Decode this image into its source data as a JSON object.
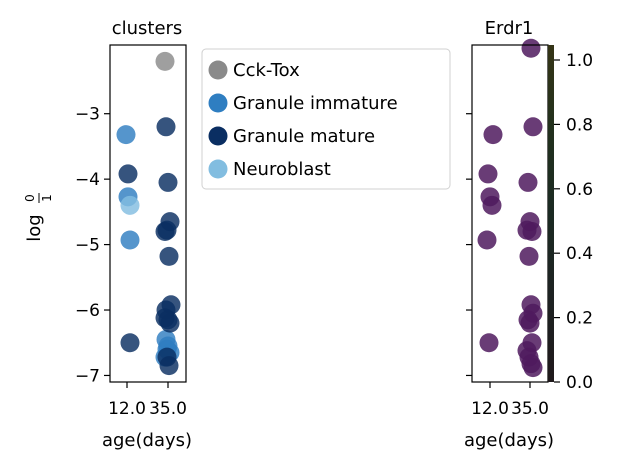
{
  "chart_data": [
    {
      "type": "scatter",
      "title": "clusters",
      "xlabel": "age(days)",
      "ylabel_base": "log",
      "ylabel_frac_num": "0",
      "ylabel_frac_den": "1",
      "x_ticks": [
        "12.0",
        "35.0"
      ],
      "y_ticks": [
        "−7",
        "−6",
        "−5",
        "−4",
        "−3"
      ],
      "y_tick_values": [
        -7,
        -6,
        -5,
        -4,
        -3
      ],
      "ylim": [
        -7.1,
        -1.95
      ],
      "legend_position": "outside-right",
      "series": [
        {
          "name": "Cck-Tox",
          "color": "#8a8a8a",
          "points": [
            [
              35.0,
              -2.2
            ]
          ]
        },
        {
          "name": "Granule immature",
          "color": "#2f7ec1",
          "points": [
            [
              12.0,
              -3.32
            ],
            [
              12.0,
              -4.27
            ],
            [
              12.0,
              -4.93
            ],
            [
              35.0,
              -6.45
            ],
            [
              35.0,
              -6.55
            ],
            [
              35.0,
              -6.65
            ],
            [
              35.0,
              -6.72
            ],
            [
              35.0,
              -6.6
            ]
          ]
        },
        {
          "name": "Granule mature",
          "color": "#0a2e62",
          "points": [
            [
              12.0,
              -3.92
            ],
            [
              12.0,
              -6.5
            ],
            [
              35.0,
              -3.2
            ],
            [
              35.0,
              -4.05
            ],
            [
              35.0,
              -4.65
            ],
            [
              35.0,
              -4.8
            ],
            [
              35.0,
              -4.78
            ],
            [
              35.0,
              -5.18
            ],
            [
              35.0,
              -5.92
            ],
            [
              35.0,
              -6.0
            ],
            [
              35.0,
              -6.15
            ],
            [
              35.0,
              -6.2
            ],
            [
              35.0,
              -6.12
            ],
            [
              35.0,
              -6.72
            ],
            [
              35.0,
              -6.85
            ]
          ]
        },
        {
          "name": "Neuroblast",
          "color": "#82bde0",
          "points": [
            [
              12.0,
              -4.4
            ]
          ]
        }
      ]
    },
    {
      "type": "scatter",
      "title": "Erdr1",
      "xlabel": "age(days)",
      "x_ticks": [
        "12.0",
        "35.0"
      ],
      "ylim": [
        -7.1,
        -1.95
      ],
      "colormap": "viridis",
      "colorbar_ticks": [
        "0.0",
        "0.2",
        "0.4",
        "0.6",
        "0.8",
        "1.0"
      ],
      "colorbar_tick_values": [
        0.0,
        0.2,
        0.4,
        0.6,
        0.8,
        1.0
      ],
      "point_color": "#4f1a5e",
      "points": [
        [
          12.0,
          -3.32
        ],
        [
          12.0,
          -3.92
        ],
        [
          12.0,
          -4.27
        ],
        [
          12.0,
          -4.4
        ],
        [
          12.0,
          -4.93
        ],
        [
          12.0,
          -6.5
        ],
        [
          35.0,
          -2.0
        ],
        [
          35.0,
          -3.2
        ],
        [
          35.0,
          -4.05
        ],
        [
          35.0,
          -4.65
        ],
        [
          35.0,
          -4.8
        ],
        [
          35.0,
          -4.78
        ],
        [
          35.0,
          -5.18
        ],
        [
          35.0,
          -5.92
        ],
        [
          35.0,
          -6.05
        ],
        [
          35.0,
          -6.15
        ],
        [
          35.0,
          -6.2
        ],
        [
          35.0,
          -6.5
        ],
        [
          35.0,
          -6.62
        ],
        [
          35.0,
          -6.72
        ],
        [
          35.0,
          -6.82
        ],
        [
          35.0,
          -6.88
        ]
      ]
    }
  ]
}
